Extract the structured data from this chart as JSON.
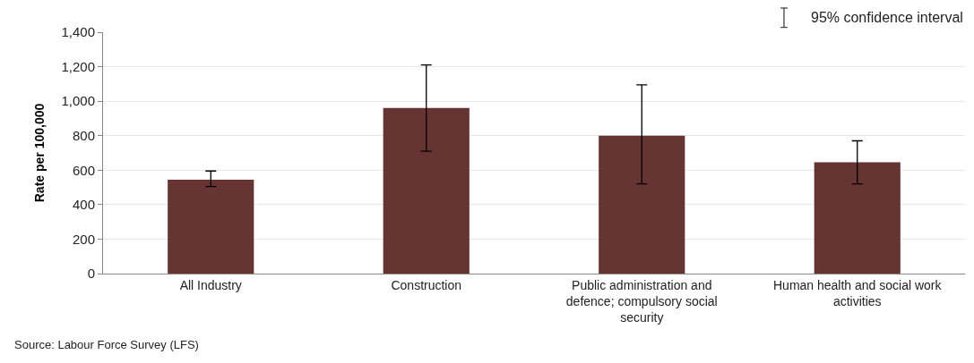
{
  "chart_data": {
    "type": "bar",
    "ylabel": "Rate per 100,000",
    "categories": [
      "All Industry",
      "Construction",
      "Public administration and defence; compulsory social security",
      "Human health and social work activities"
    ],
    "values": [
      545,
      960,
      800,
      645
    ],
    "errors": [
      [
        505,
        595
      ],
      [
        710,
        1210
      ],
      [
        520,
        1095
      ],
      [
        520,
        770
      ]
    ],
    "color": "#673434",
    "ylim": [
      0,
      1400
    ],
    "yticks": [
      0,
      {
        "value": 200,
        "label": "200"
      },
      {
        "value": 400,
        "label": "400"
      },
      {
        "value": 600,
        "label": "600"
      },
      {
        "value": 800,
        "label": "800"
      },
      {
        "value": 1000,
        "label": "1,000"
      },
      {
        "value": 1200,
        "label": "1,200"
      },
      {
        "value": 1400,
        "label": "1,400"
      }
    ],
    "grid": "y",
    "legend": false,
    "annotations": [
      "95% confidence interval",
      "Source: Labour Force Survey (LFS)"
    ]
  }
}
